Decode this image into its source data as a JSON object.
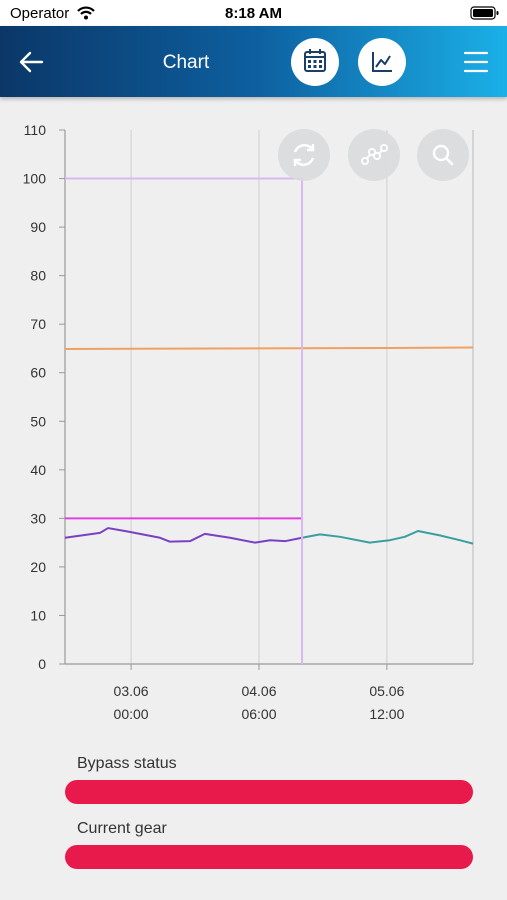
{
  "status_bar": {
    "carrier": "Operator",
    "time": "8:18 AM"
  },
  "header": {
    "title": "Chart"
  },
  "chart_data": {
    "type": "line",
    "series": [
      {
        "color": "#f0a060",
        "x": [
          -15.5,
          20,
          60,
          80.2
        ],
        "values": [
          64.9,
          65,
          65.1,
          65.2
        ]
      },
      {
        "color": "#7b3fc4",
        "x": [
          -15.5,
          -7.3,
          -5.4,
          -0.2,
          6.8,
          9.1,
          13.8,
          17.3,
          23.2,
          29.1,
          32.6,
          36.1,
          40.1
        ],
        "values": [
          26,
          27,
          28,
          27.2,
          26,
          25.2,
          25.3,
          26.8,
          26,
          25,
          25.5,
          25.3,
          26
        ]
      },
      {
        "color": "#3a9ea0",
        "x": [
          40.1,
          44.3,
          49.0,
          56.0,
          60.7,
          64.2,
          67.3,
          72.4,
          77.1,
          80.2
        ],
        "values": [
          26,
          26.7,
          26.2,
          25,
          25.5,
          26.2,
          27.4,
          26.5,
          25.5,
          24.8
        ]
      },
      {
        "color": "#e040e0",
        "x": [
          -15.5,
          40.1
        ],
        "values": [
          30,
          30
        ]
      },
      {
        "color": "#d8b8f0",
        "x": [
          -15.5,
          40.1,
          40.1
        ],
        "values": [
          100,
          100,
          0
        ]
      }
    ],
    "xlim": [
      -15.5,
      80.2
    ],
    "xticks": [
      {
        "value": 0,
        "label": [
          "03.06",
          "00:00"
        ]
      },
      {
        "value": 30,
        "label": [
          "04.06",
          "06:00"
        ]
      },
      {
        "value": 60,
        "label": [
          "05.06",
          "12:00"
        ]
      }
    ],
    "ylim": [
      0,
      110
    ],
    "yticks": [
      0,
      10,
      20,
      30,
      40,
      50,
      60,
      70,
      80,
      90,
      100,
      110
    ],
    "grid": true
  },
  "indicators": [
    {
      "label": "Bypass status"
    },
    {
      "label": "Current gear"
    }
  ]
}
